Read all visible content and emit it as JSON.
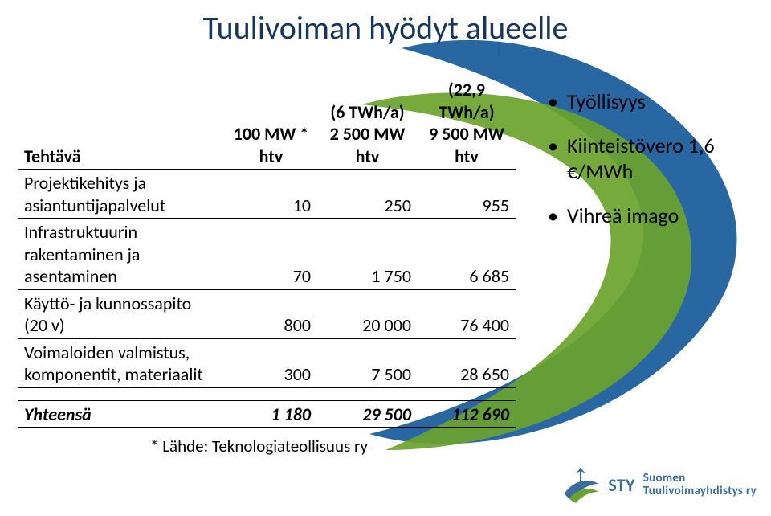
{
  "title": "Tuulivoiman hyödyt alueelle",
  "table": {
    "headers": {
      "top0": "",
      "top1": "",
      "top2": "(6 TWh/a)",
      "top3": "(22,9 TWh/a)",
      "sub0": "Tehtävä",
      "sub1a": "100 MW *",
      "sub1b": "htv",
      "sub2a": "2 500 MW",
      "sub2b": "htv",
      "sub3a": "9 500 MW",
      "sub3b": "htv"
    },
    "rows": [
      {
        "label": "Projektikehitys ja asiantuntijapalvelut",
        "v1": "10",
        "v2": "250",
        "v3": "955"
      },
      {
        "label": "Infrastruktuurin rakentaminen ja asentaminen",
        "v1": "70",
        "v2": "1 750",
        "v3": "6 685"
      },
      {
        "label": "Käyttö- ja kunnossapito (20 v)",
        "v1": "800",
        "v2": "20 000",
        "v3": "76 400"
      },
      {
        "label": "Voimaloiden valmistus, komponentit, materiaalit",
        "v1": "300",
        "v2": "7 500",
        "v3": "28 650"
      }
    ],
    "totals": {
      "label": "Yhteensä",
      "v1": "1 180",
      "v2": "29 500",
      "v3": "112 690"
    },
    "footnote": "* Lähde: Teknologiateollisuus ry"
  },
  "bullets": [
    "Työllisyys",
    "Kiinteistövero 1,6 €/MWh",
    "Vihreä imago"
  ],
  "logo": {
    "acronym": "STY",
    "line1": "Suomen",
    "line2": "Tuulivoimayhdistys ry"
  },
  "colors": {
    "title": "#17365d",
    "swoosh_blue": "#1e5f9e",
    "swoosh_green": "#6aa32d",
    "logo_blue": "#3b6da0"
  }
}
